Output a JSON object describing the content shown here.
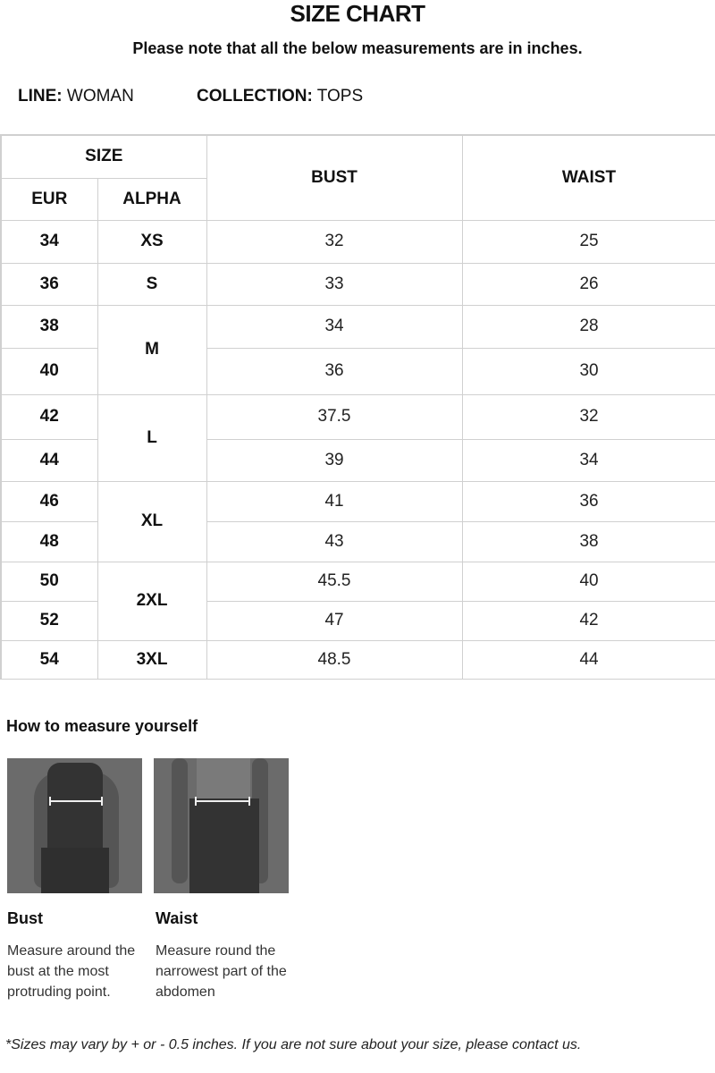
{
  "title": "SIZE CHART",
  "note": "Please note that all the below measurements are in inches.",
  "line": {
    "label": "LINE:",
    "value": "WOMAN"
  },
  "collection": {
    "label": "COLLECTION:",
    "value": "TOPS"
  },
  "table": {
    "headers": {
      "size": "SIZE",
      "eur": "EUR",
      "alpha": "ALPHA",
      "bust": "BUST",
      "waist": "WAIST"
    },
    "rows": [
      {
        "eur": "34",
        "alpha": "XS",
        "span": 1,
        "bust": "32",
        "waist": "25"
      },
      {
        "eur": "36",
        "alpha": "S",
        "span": 1,
        "bust": "33",
        "waist": "26"
      },
      {
        "eur": "38",
        "alpha": "M",
        "span": 2,
        "bust": "34",
        "waist": "28"
      },
      {
        "eur": "40",
        "bust": "36",
        "waist": "30"
      },
      {
        "eur": "42",
        "alpha": "L",
        "span": 2,
        "bust": "37.5",
        "waist": "32"
      },
      {
        "eur": "44",
        "bust": "39",
        "waist": "34"
      },
      {
        "eur": "46",
        "alpha": "XL",
        "span": 2,
        "bust": "41",
        "waist": "36"
      },
      {
        "eur": "48",
        "bust": "43",
        "waist": "38"
      },
      {
        "eur": "50",
        "alpha": "2XL",
        "span": 2,
        "bust": "45.5",
        "waist": "40"
      },
      {
        "eur": "52",
        "bust": "47",
        "waist": "42"
      },
      {
        "eur": "54",
        "alpha": "3XL",
        "span": 1,
        "bust": "48.5",
        "waist": "44"
      }
    ]
  },
  "howto": {
    "title": "How to measure yourself",
    "items": [
      {
        "label": "Bust",
        "text": "Measure around the bust at the most protruding point."
      },
      {
        "label": "Waist",
        "text": "Measure round the narrowest part of the abdomen"
      }
    ]
  },
  "footnote": "*Sizes may vary by + or - 0.5 inches. If you are not sure about your size, please contact us."
}
